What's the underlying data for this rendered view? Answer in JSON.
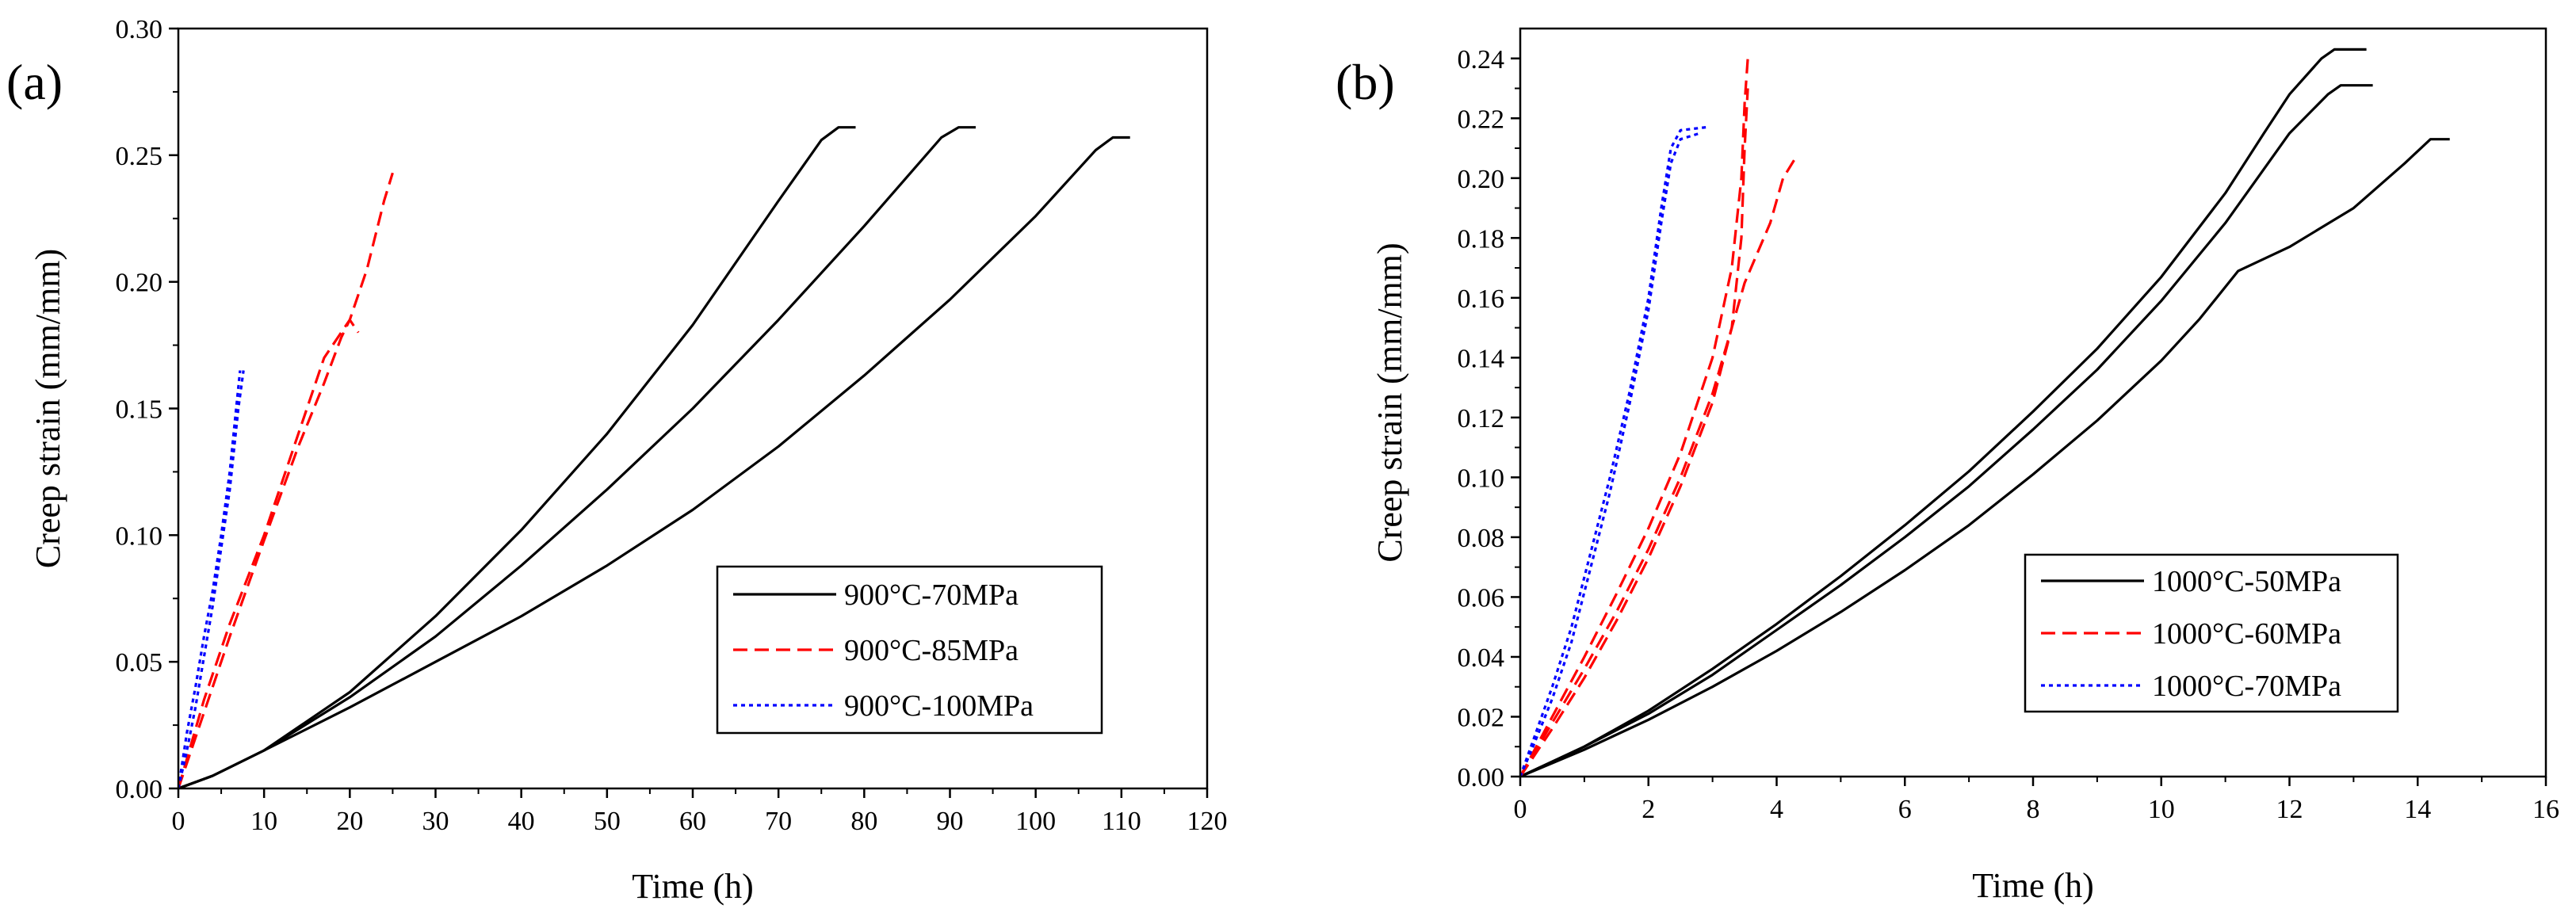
{
  "chart_data": [
    {
      "type": "line",
      "panel_label": "(a)",
      "xlabel": "Time (h)",
      "ylabel": "Creep strain (mm/mm)",
      "xlim": [
        0,
        120
      ],
      "ylim": [
        0,
        0.3
      ],
      "xticks": [
        "0",
        "10",
        "20",
        "30",
        "40",
        "50",
        "60",
        "70",
        "80",
        "90",
        "100",
        "110",
        "120"
      ],
      "yticks": [
        "0.00",
        "0.05",
        "0.10",
        "0.15",
        "0.20",
        "0.25",
        "0.30"
      ],
      "legend_position": "middle-right",
      "legend": [
        {
          "label": "900°C-70MPa",
          "color": "#000000",
          "style": "solid"
        },
        {
          "label": "900°C-85MPa",
          "color": "#ff0000",
          "style": "dashed"
        },
        {
          "label": "900°C-100MPa",
          "color": "#0000ff",
          "style": "dotted"
        }
      ],
      "series": [
        {
          "name": "900°C-70MPa",
          "group": 0,
          "points": [
            [
              0,
              0
            ],
            [
              4,
              0.005
            ],
            [
              10,
              0.015
            ],
            [
              20,
              0.038
            ],
            [
              30,
              0.068
            ],
            [
              40,
              0.102
            ],
            [
              50,
              0.14
            ],
            [
              60,
              0.183
            ],
            [
              70,
              0.232
            ],
            [
              75,
              0.256
            ],
            [
              77,
              0.261
            ],
            [
              79,
              0.261
            ]
          ]
        },
        {
          "name": "900°C-70MPa",
          "group": 0,
          "points": [
            [
              0,
              0
            ],
            [
              4,
              0.005
            ],
            [
              10,
              0.015
            ],
            [
              20,
              0.036
            ],
            [
              30,
              0.06
            ],
            [
              40,
              0.088
            ],
            [
              50,
              0.118
            ],
            [
              60,
              0.15
            ],
            [
              70,
              0.185
            ],
            [
              80,
              0.222
            ],
            [
              89,
              0.257
            ],
            [
              91,
              0.261
            ],
            [
              93,
              0.261
            ]
          ]
        },
        {
          "name": "900°C-70MPa",
          "group": 0,
          "points": [
            [
              0,
              0
            ],
            [
              4,
              0.005
            ],
            [
              10,
              0.015
            ],
            [
              20,
              0.032
            ],
            [
              30,
              0.05
            ],
            [
              40,
              0.068
            ],
            [
              50,
              0.088
            ],
            [
              60,
              0.11
            ],
            [
              70,
              0.135
            ],
            [
              80,
              0.163
            ],
            [
              90,
              0.193
            ],
            [
              100,
              0.226
            ],
            [
              107,
              0.252
            ],
            [
              109,
              0.257
            ],
            [
              111,
              0.257
            ]
          ]
        },
        {
          "name": "900°C-85MPa",
          "group": 1,
          "points": [
            [
              0,
              0
            ],
            [
              3,
              0.035
            ],
            [
              6,
              0.065
            ],
            [
              10,
              0.1
            ],
            [
              14,
              0.14
            ],
            [
              17,
              0.17
            ],
            [
              20,
              0.185
            ],
            [
              22,
              0.205
            ],
            [
              24,
              0.232
            ],
            [
              25,
              0.243
            ]
          ]
        },
        {
          "name": "900°C-85MPa",
          "group": 1,
          "points": [
            [
              0,
              0
            ],
            [
              3,
              0.03
            ],
            [
              6,
              0.06
            ],
            [
              10,
              0.098
            ],
            [
              14,
              0.135
            ],
            [
              17,
              0.16
            ],
            [
              19,
              0.178
            ],
            [
              20,
              0.185
            ],
            [
              21,
              0.18
            ]
          ]
        },
        {
          "name": "900°C-100MPa",
          "group": 2,
          "points": [
            [
              0,
              0
            ],
            [
              1,
              0.022
            ],
            [
              2,
              0.04
            ],
            [
              3,
              0.06
            ],
            [
              4,
              0.078
            ],
            [
              5,
              0.1
            ],
            [
              6,
              0.125
            ],
            [
              6.8,
              0.152
            ],
            [
              7.2,
              0.165
            ]
          ]
        },
        {
          "name": "900°C-100MPa",
          "group": 2,
          "points": [
            [
              0,
              0
            ],
            [
              1,
              0.015
            ],
            [
              2,
              0.032
            ],
            [
              3,
              0.052
            ],
            [
              4,
              0.072
            ],
            [
              5,
              0.095
            ],
            [
              6,
              0.118
            ],
            [
              7,
              0.15
            ],
            [
              7.6,
              0.165
            ]
          ]
        }
      ]
    },
    {
      "type": "line",
      "panel_label": "(b)",
      "xlabel": "Time (h)",
      "ylabel": "Creep strain (mm/mm)",
      "xlim": [
        0,
        16
      ],
      "ylim": [
        0,
        0.25
      ],
      "xticks": [
        "0",
        "2",
        "4",
        "6",
        "8",
        "10",
        "12",
        "14",
        "16"
      ],
      "yticks": [
        "0.00",
        "0.02",
        "0.04",
        "0.06",
        "0.08",
        "0.10",
        "0.12",
        "0.14",
        "0.16",
        "0.18",
        "0.20",
        "0.22",
        "0.24"
      ],
      "legend_position": "lower-right",
      "legend": [
        {
          "label": "1000°C-50MPa",
          "color": "#000000",
          "style": "solid"
        },
        {
          "label": "1000°C-60MPa",
          "color": "#ff0000",
          "style": "dashed"
        },
        {
          "label": "1000°C-70MPa",
          "color": "#0000ff",
          "style": "dotted"
        }
      ],
      "series": [
        {
          "name": "1000°C-50MPa",
          "group": 0,
          "points": [
            [
              0,
              0
            ],
            [
              1,
              0.01
            ],
            [
              2,
              0.022
            ],
            [
              3,
              0.036
            ],
            [
              4,
              0.051
            ],
            [
              5,
              0.067
            ],
            [
              6,
              0.084
            ],
            [
              7,
              0.102
            ],
            [
              8,
              0.122
            ],
            [
              9,
              0.143
            ],
            [
              10,
              0.167
            ],
            [
              11,
              0.195
            ],
            [
              11.6,
              0.215
            ],
            [
              12,
              0.228
            ],
            [
              12.5,
              0.24
            ],
            [
              12.7,
              0.243
            ],
            [
              13.2,
              0.243
            ]
          ]
        },
        {
          "name": "1000°C-50MPa",
          "group": 0,
          "points": [
            [
              0,
              0
            ],
            [
              1,
              0.01
            ],
            [
              2,
              0.021
            ],
            [
              3,
              0.034
            ],
            [
              4,
              0.049
            ],
            [
              5,
              0.064
            ],
            [
              6,
              0.08
            ],
            [
              7,
              0.097
            ],
            [
              8,
              0.116
            ],
            [
              9,
              0.136
            ],
            [
              10,
              0.159
            ],
            [
              11,
              0.185
            ],
            [
              11.5,
              0.2
            ],
            [
              12,
              0.215
            ],
            [
              12.6,
              0.228
            ],
            [
              12.8,
              0.231
            ],
            [
              13.3,
              0.231
            ]
          ]
        },
        {
          "name": "1000°C-50MPa",
          "group": 0,
          "points": [
            [
              0,
              0
            ],
            [
              1,
              0.009
            ],
            [
              2,
              0.019
            ],
            [
              3,
              0.03
            ],
            [
              4,
              0.042
            ],
            [
              5,
              0.055
            ],
            [
              6,
              0.069
            ],
            [
              7,
              0.084
            ],
            [
              8,
              0.101
            ],
            [
              9,
              0.119
            ],
            [
              10,
              0.139
            ],
            [
              10.6,
              0.153
            ],
            [
              11.2,
              0.169
            ],
            [
              12,
              0.177
            ],
            [
              13,
              0.19
            ],
            [
              13.8,
              0.205
            ],
            [
              14.2,
              0.213
            ],
            [
              14.5,
              0.213
            ]
          ]
        },
        {
          "name": "1000°C-60MPa",
          "group": 1,
          "points": [
            [
              0,
              0
            ],
            [
              0.5,
              0.02
            ],
            [
              1,
              0.04
            ],
            [
              1.5,
              0.061
            ],
            [
              2,
              0.083
            ],
            [
              2.5,
              0.108
            ],
            [
              3,
              0.14
            ],
            [
              3.3,
              0.17
            ],
            [
              3.45,
              0.2
            ],
            [
              3.5,
              0.225
            ],
            [
              3.55,
              0.24
            ]
          ]
        },
        {
          "name": "1000°C-60MPa",
          "group": 1,
          "points": [
            [
              0,
              0
            ],
            [
              0.5,
              0.018
            ],
            [
              1,
              0.036
            ],
            [
              1.5,
              0.055
            ],
            [
              2,
              0.076
            ],
            [
              2.5,
              0.1
            ],
            [
              3,
              0.128
            ],
            [
              3.3,
              0.15
            ],
            [
              3.5,
              0.165
            ],
            [
              3.9,
              0.185
            ],
            [
              4.1,
              0.2
            ],
            [
              4.3,
              0.207
            ]
          ]
        },
        {
          "name": "1000°C-60MPa",
          "group": 1,
          "points": [
            [
              0,
              0
            ],
            [
              0.5,
              0.016
            ],
            [
              1,
              0.033
            ],
            [
              1.5,
              0.052
            ],
            [
              2,
              0.073
            ],
            [
              2.5,
              0.097
            ],
            [
              3,
              0.125
            ],
            [
              3.3,
              0.15
            ],
            [
              3.45,
              0.18
            ],
            [
              3.5,
              0.21
            ],
            [
              3.55,
              0.23
            ]
          ]
        },
        {
          "name": "1000°C-70MPa",
          "group": 2,
          "points": [
            [
              0,
              0
            ],
            [
              0.2,
              0.012
            ],
            [
              0.5,
              0.03
            ],
            [
              0.8,
              0.05
            ],
            [
              1.1,
              0.075
            ],
            [
              1.4,
              0.1
            ],
            [
              1.7,
              0.128
            ],
            [
              2,
              0.16
            ],
            [
              2.2,
              0.19
            ],
            [
              2.35,
              0.21
            ],
            [
              2.5,
              0.216
            ],
            [
              2.9,
              0.217
            ]
          ]
        },
        {
          "name": "1000°C-70MPa",
          "group": 2,
          "points": [
            [
              0,
              0
            ],
            [
              0.2,
              0.01
            ],
            [
              0.5,
              0.026
            ],
            [
              0.8,
              0.045
            ],
            [
              1.1,
              0.07
            ],
            [
              1.4,
              0.095
            ],
            [
              1.7,
              0.124
            ],
            [
              2,
              0.156
            ],
            [
              2.2,
              0.185
            ],
            [
              2.35,
              0.205
            ],
            [
              2.5,
              0.213
            ],
            [
              2.8,
              0.215
            ]
          ]
        }
      ]
    }
  ]
}
